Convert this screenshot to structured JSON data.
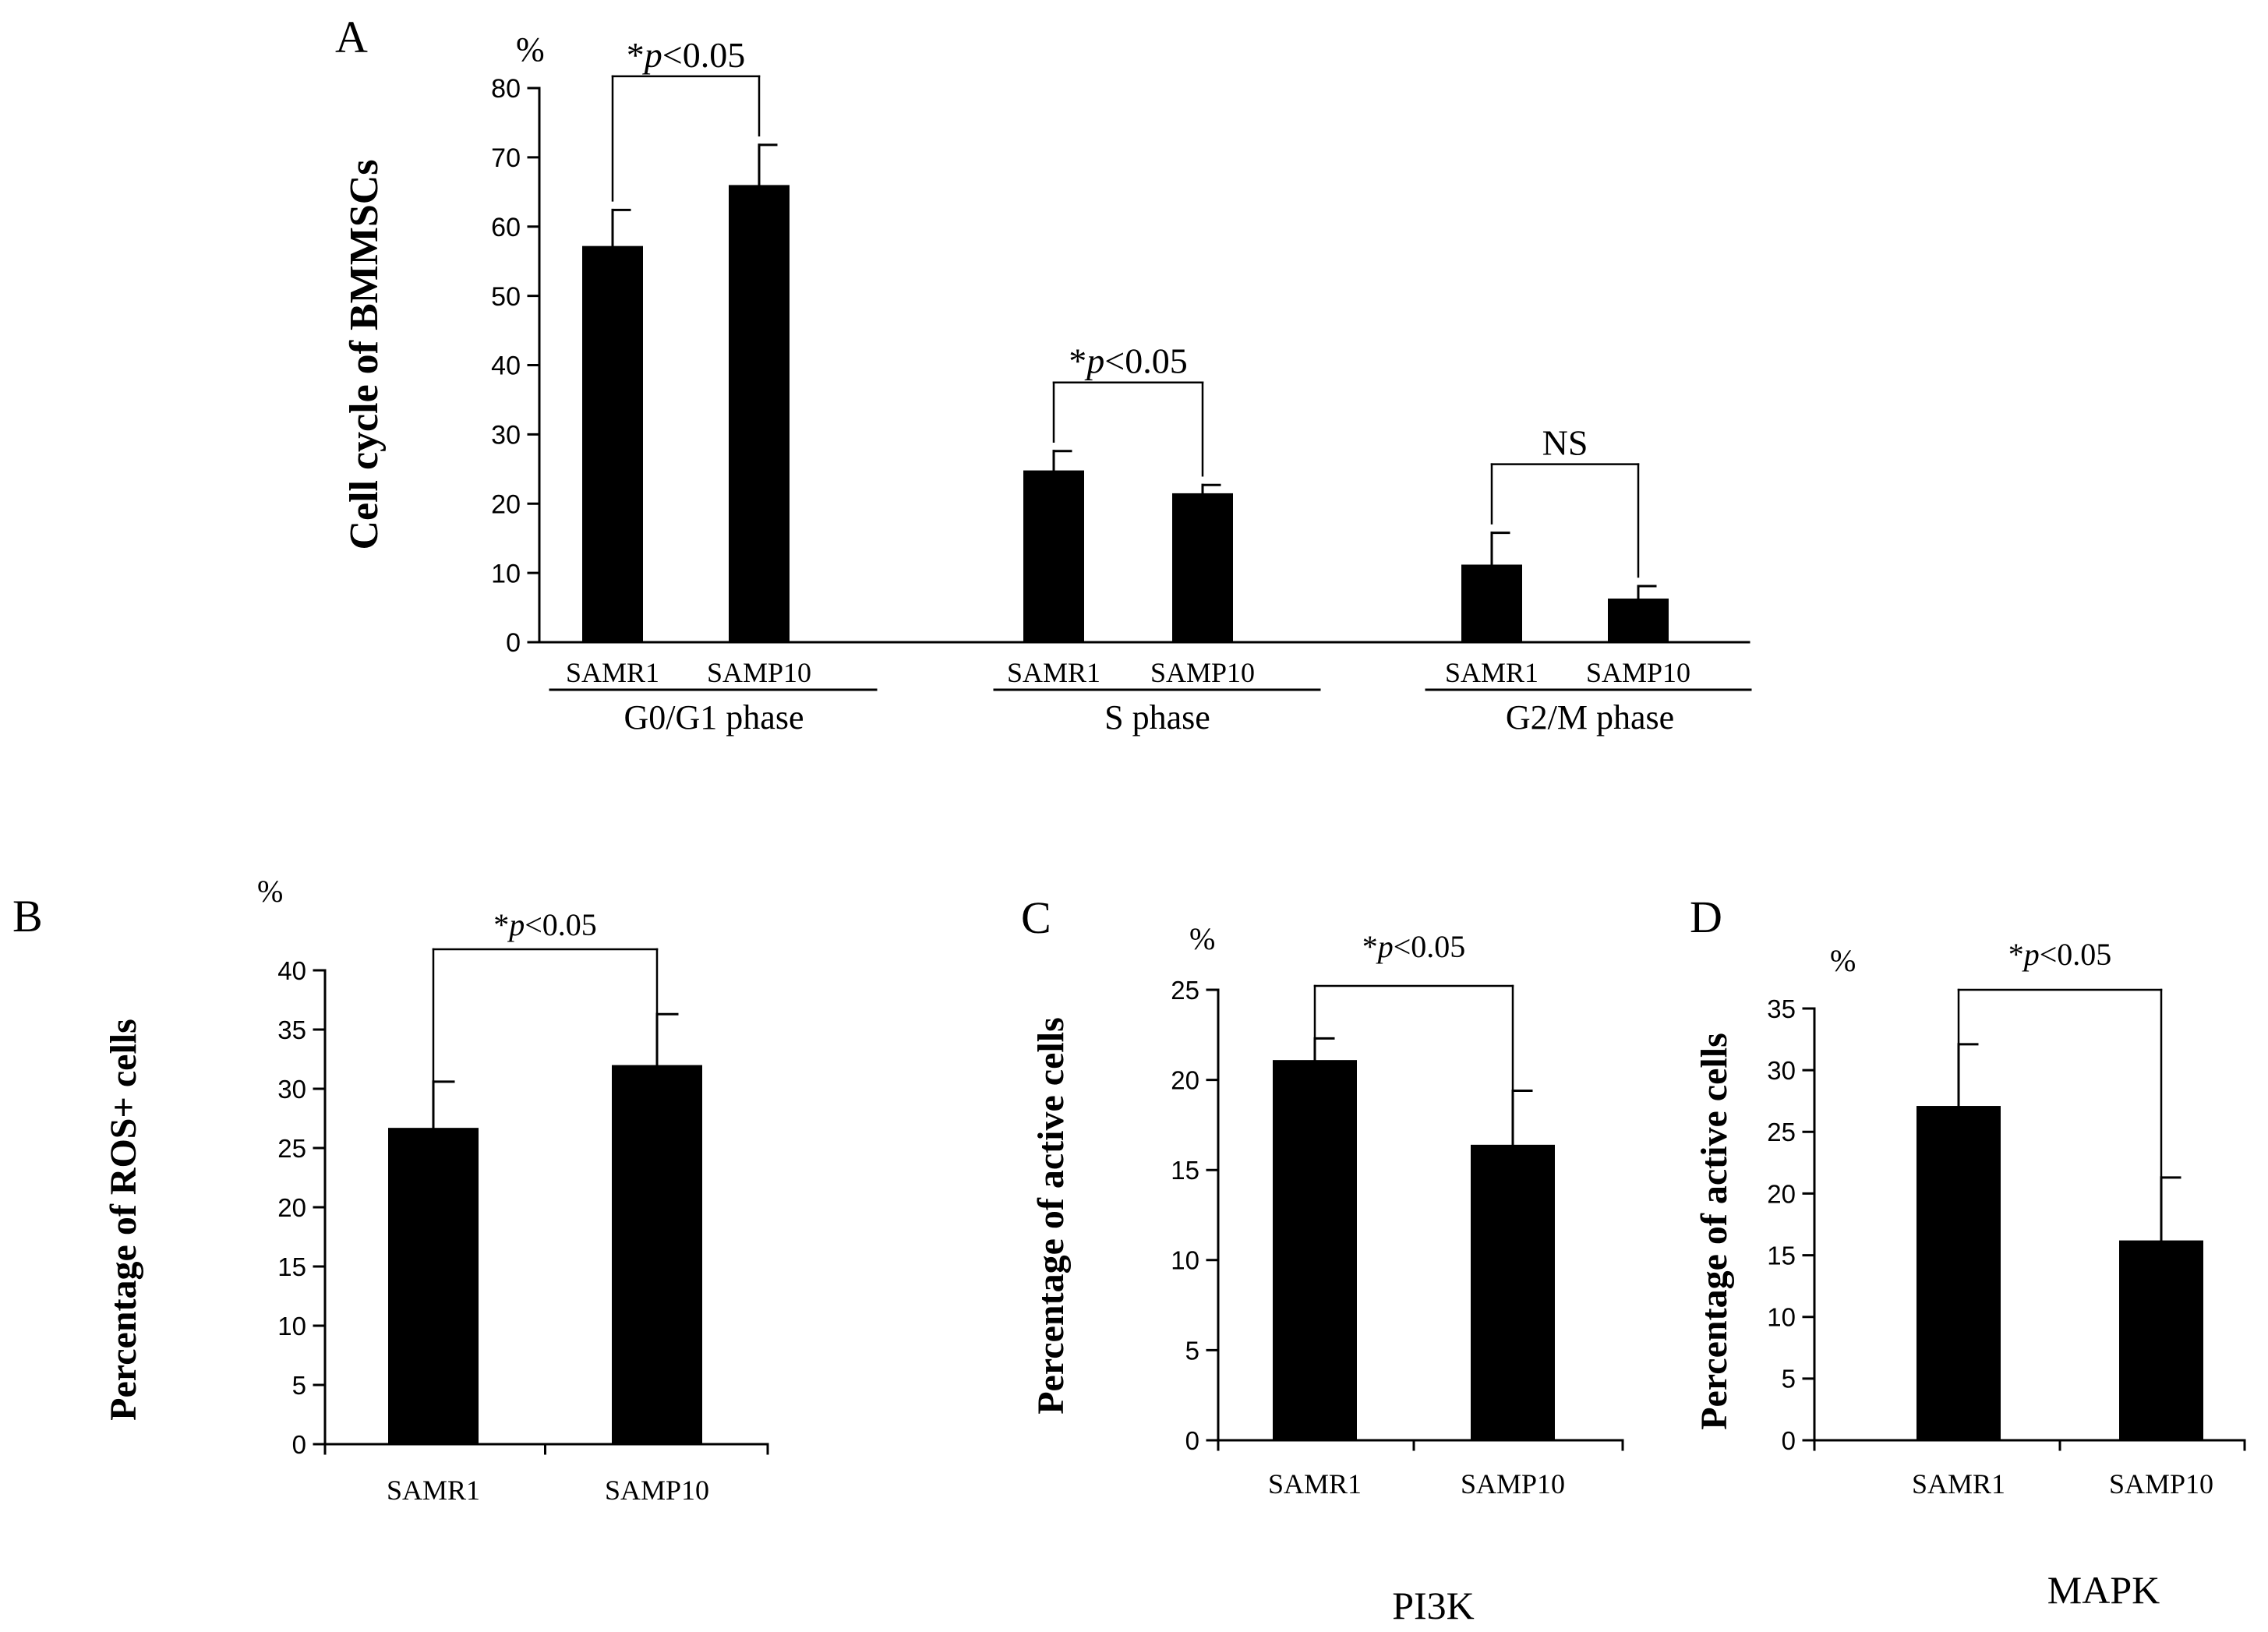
{
  "colors": {
    "bar": "#000000",
    "axis": "#000000",
    "text": "#000000",
    "background": "#ffffff"
  },
  "chart_data": [
    {
      "id": "A",
      "panel_letter": "A",
      "type": "bar",
      "ylabel": "Cell cycle of BMMSCs",
      "unit": "%",
      "ylim": [
        0,
        80
      ],
      "yticks": [
        0,
        10,
        20,
        30,
        40,
        50,
        60,
        70,
        80
      ],
      "groups": [
        {
          "label": "G0/G1 phase",
          "categories": [
            "SAMR1",
            "SAMP10"
          ],
          "values": [
            57.2,
            66.0
          ],
          "errors": [
            5.2,
            5.8
          ],
          "annotation": "*p<0.05"
        },
        {
          "label": "S phase",
          "categories": [
            "SAMR1",
            "SAMP10"
          ],
          "values": [
            24.8,
            21.5
          ],
          "errors": [
            2.8,
            1.2
          ],
          "annotation": "*p<0.05"
        },
        {
          "label": "G2/M phase",
          "categories": [
            "SAMR1",
            "SAMP10"
          ],
          "values": [
            11.2,
            6.3
          ],
          "errors": [
            4.6,
            1.8
          ],
          "annotation": "NS"
        }
      ]
    },
    {
      "id": "B",
      "panel_letter": "B",
      "type": "bar",
      "ylabel": "Percentage of ROS+ cells",
      "unit": "%",
      "ylim": [
        0,
        40
      ],
      "yticks": [
        0,
        5,
        10,
        15,
        20,
        25,
        30,
        35,
        40
      ],
      "categories": [
        "SAMR1",
        "SAMP10"
      ],
      "values": [
        26.7,
        32.0
      ],
      "errors": [
        3.9,
        4.3
      ],
      "annotation": "*p<0.05",
      "caption": ""
    },
    {
      "id": "C",
      "panel_letter": "C",
      "type": "bar",
      "ylabel": "Percentage of active cells",
      "unit": "%",
      "ylim": [
        0,
        25
      ],
      "yticks": [
        0,
        5,
        10,
        15,
        20,
        25
      ],
      "categories": [
        "SAMR1",
        "SAMP10"
      ],
      "values": [
        21.1,
        16.4
      ],
      "errors": [
        1.2,
        3.0
      ],
      "annotation": "*p<0.05",
      "caption": "PI3K"
    },
    {
      "id": "D",
      "panel_letter": "D",
      "type": "bar",
      "ylabel": "Percentage of active cells",
      "unit": "%",
      "ylim": [
        0,
        35
      ],
      "yticks": [
        0,
        5,
        10,
        15,
        20,
        25,
        30,
        35
      ],
      "categories": [
        "SAMR1",
        "SAMP10"
      ],
      "values": [
        27.1,
        16.2
      ],
      "errors": [
        5.0,
        5.1
      ],
      "annotation": "*p<0.05",
      "caption": "MAPK"
    }
  ]
}
